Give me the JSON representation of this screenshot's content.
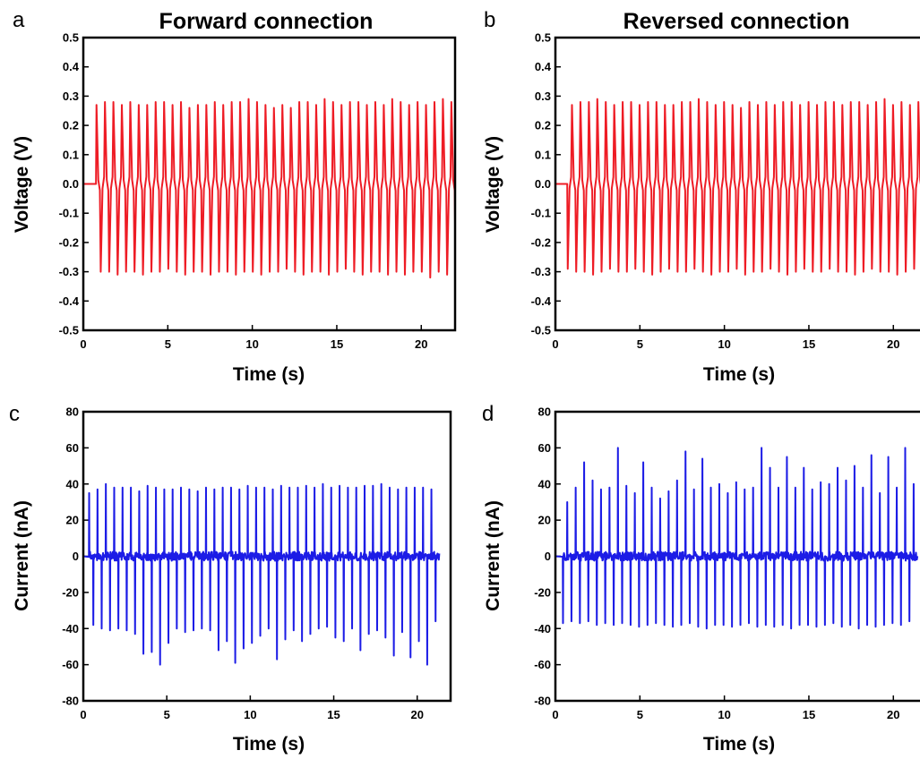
{
  "chart_data": [
    {
      "panel": "a",
      "title": "Forward connection",
      "type": "line",
      "xlabel": "Time (s)",
      "ylabel": "Voltage (V)",
      "xlim": [
        0,
        22
      ],
      "ylim": [
        -0.5,
        0.5
      ],
      "xticks": [
        0,
        5,
        10,
        15,
        20
      ],
      "yticks": [
        -0.5,
        -0.4,
        -0.3,
        -0.2,
        -0.1,
        0.0,
        0.1,
        0.2,
        0.3,
        0.4,
        0.5
      ],
      "ytick_labels": [
        "-0.5",
        "-0.4",
        "-0.3",
        "-0.2",
        "-0.1",
        "0.0",
        "0.1",
        "0.2",
        "0.3",
        "0.4",
        "0.5"
      ],
      "color": "#ee1c25",
      "series": [
        {
          "signal": "alternating-pulse",
          "onset_s": 0.75,
          "pulse_period_s": 0.5,
          "baseline": 0.0,
          "positive_peak_first": true,
          "positive_peaks": [
            0.27,
            0.28,
            0.28,
            0.27,
            0.28,
            0.27,
            0.27,
            0.28,
            0.28,
            0.27,
            0.28,
            0.26,
            0.27,
            0.27,
            0.28,
            0.27,
            0.28,
            0.28,
            0.29,
            0.28,
            0.27,
            0.26,
            0.27,
            0.26,
            0.28,
            0.28,
            0.27,
            0.29,
            0.28,
            0.27,
            0.28,
            0.28,
            0.27,
            0.28,
            0.27,
            0.29,
            0.28,
            0.27,
            0.28,
            0.27,
            0.28,
            0.29,
            0.28,
            0.27
          ],
          "negative_peaks": [
            -0.3,
            -0.3,
            -0.31,
            -0.3,
            -0.3,
            -0.31,
            -0.3,
            -0.3,
            -0.29,
            -0.3,
            -0.31,
            -0.3,
            -0.3,
            -0.31,
            -0.3,
            -0.3,
            -0.31,
            -0.3,
            -0.3,
            -0.31,
            -0.3,
            -0.3,
            -0.29,
            -0.3,
            -0.31,
            -0.3,
            -0.3,
            -0.31,
            -0.3,
            -0.29,
            -0.3,
            -0.31,
            -0.3,
            -0.3,
            -0.31,
            -0.3,
            -0.31,
            -0.3,
            -0.3,
            -0.32,
            -0.3,
            -0.31,
            -0.3,
            -0.31
          ]
        }
      ]
    },
    {
      "panel": "b",
      "title": "Reversed connection",
      "type": "line",
      "xlabel": "Time (s)",
      "ylabel": "Voltage (V)",
      "xlim": [
        0,
        22
      ],
      "ylim": [
        -0.5,
        0.5
      ],
      "xticks": [
        0,
        5,
        10,
        15,
        20
      ],
      "yticks": [
        -0.5,
        -0.4,
        -0.3,
        -0.2,
        -0.1,
        0.0,
        0.1,
        0.2,
        0.3,
        0.4,
        0.5
      ],
      "ytick_labels": [
        "-0.5",
        "-0.4",
        "-0.3",
        "-0.2",
        "-0.1",
        "0.0",
        "0.1",
        "0.2",
        "0.3",
        "0.4",
        "0.5"
      ],
      "color": "#ee1c25",
      "series": [
        {
          "signal": "alternating-pulse",
          "onset_s": 0.7,
          "pulse_period_s": 0.5,
          "baseline": 0.0,
          "positive_peak_first": false,
          "positive_peaks": [
            0.27,
            0.28,
            0.28,
            0.29,
            0.28,
            0.27,
            0.28,
            0.28,
            0.27,
            0.28,
            0.28,
            0.27,
            0.27,
            0.28,
            0.28,
            0.29,
            0.28,
            0.27,
            0.28,
            0.27,
            0.26,
            0.28,
            0.27,
            0.28,
            0.27,
            0.28,
            0.28,
            0.27,
            0.28,
            0.27,
            0.28,
            0.28,
            0.27,
            0.28,
            0.28,
            0.27,
            0.28,
            0.29,
            0.27,
            0.28,
            0.27,
            0.28,
            0.28,
            0.27
          ],
          "negative_peaks": [
            -0.29,
            -0.3,
            -0.3,
            -0.31,
            -0.3,
            -0.29,
            -0.3,
            -0.3,
            -0.29,
            -0.3,
            -0.31,
            -0.3,
            -0.29,
            -0.3,
            -0.3,
            -0.29,
            -0.3,
            -0.31,
            -0.3,
            -0.3,
            -0.29,
            -0.31,
            -0.3,
            -0.3,
            -0.29,
            -0.3,
            -0.31,
            -0.3,
            -0.29,
            -0.3,
            -0.3,
            -0.29,
            -0.3,
            -0.3,
            -0.31,
            -0.3,
            -0.29,
            -0.3,
            -0.3,
            -0.31,
            -0.3,
            -0.29,
            -0.3,
            -0.27
          ]
        }
      ]
    },
    {
      "panel": "c",
      "title": "",
      "type": "line",
      "xlabel": "Time (s)",
      "ylabel": "Current (nA)",
      "xlim": [
        0,
        22
      ],
      "ylim": [
        -80,
        80
      ],
      "xticks": [
        0,
        5,
        10,
        15,
        20
      ],
      "yticks": [
        -80,
        -60,
        -40,
        -20,
        0,
        20,
        40,
        60,
        80
      ],
      "ytick_labels": [
        "-80",
        "-60",
        "-40",
        "-20",
        "0",
        "20",
        "40",
        "60",
        "80"
      ],
      "color": "#1c1ce6",
      "series": [
        {
          "signal": "spike-train",
          "onset_s": 0.35,
          "spike_period_s": 0.5,
          "noise_amplitude": 2.5,
          "positive_first": true,
          "positive_spikes": [
            35,
            37,
            40,
            38,
            38,
            38,
            36,
            39,
            38,
            37,
            37,
            38,
            37,
            36,
            38,
            37,
            38,
            38,
            37,
            39,
            38,
            38,
            37,
            39,
            38,
            38,
            39,
            38,
            40,
            38,
            39,
            38,
            38,
            39,
            39,
            40,
            38,
            37,
            38,
            38,
            38,
            37
          ],
          "negative_spikes": [
            -38,
            -40,
            -41,
            -40,
            -41,
            -43,
            -54,
            -53,
            -60,
            -48,
            -40,
            -42,
            -41,
            -40,
            -41,
            -52,
            -47,
            -59,
            -51,
            -48,
            -44,
            -40,
            -57,
            -46,
            -41,
            -47,
            -43,
            -40,
            -39,
            -45,
            -47,
            -40,
            -52,
            -43,
            -41,
            -45,
            -55,
            -42,
            -56,
            -47,
            -60,
            -36
          ]
        }
      ]
    },
    {
      "panel": "d",
      "title": "",
      "type": "line",
      "xlabel": "Time (s)",
      "ylabel": "Current (nA)",
      "xlim": [
        0,
        22
      ],
      "ylim": [
        -80,
        80
      ],
      "xticks": [
        0,
        5,
        10,
        15,
        20
      ],
      "yticks": [
        -80,
        -60,
        -40,
        -20,
        0,
        20,
        40,
        60,
        80
      ],
      "ytick_labels": [
        "-80",
        "-60",
        "-40",
        "-20",
        "0",
        "20",
        "40",
        "60",
        "80"
      ],
      "color": "#1c1ce6",
      "series": [
        {
          "signal": "spike-train",
          "onset_s": 0.45,
          "spike_period_s": 0.5,
          "noise_amplitude": 2.5,
          "positive_first": false,
          "positive_spikes": [
            30,
            38,
            52,
            42,
            37,
            38,
            60,
            39,
            35,
            52,
            38,
            32,
            36,
            42,
            58,
            37,
            54,
            38,
            40,
            35,
            41,
            37,
            38,
            60,
            49,
            38,
            55,
            38,
            49,
            37,
            41,
            40,
            49,
            42,
            50,
            38,
            56,
            35,
            55,
            38,
            60,
            40
          ],
          "negative_spikes": [
            -37,
            -36,
            -37,
            -36,
            -38,
            -37,
            -38,
            -37,
            -38,
            -39,
            -38,
            -37,
            -38,
            -39,
            -38,
            -37,
            -39,
            -40,
            -38,
            -38,
            -39,
            -38,
            -37,
            -39,
            -38,
            -39,
            -38,
            -40,
            -38,
            -38,
            -39,
            -38,
            -37,
            -39,
            -38,
            -40,
            -38,
            -39,
            -38,
            -37,
            -38,
            -36
          ]
        }
      ]
    }
  ]
}
